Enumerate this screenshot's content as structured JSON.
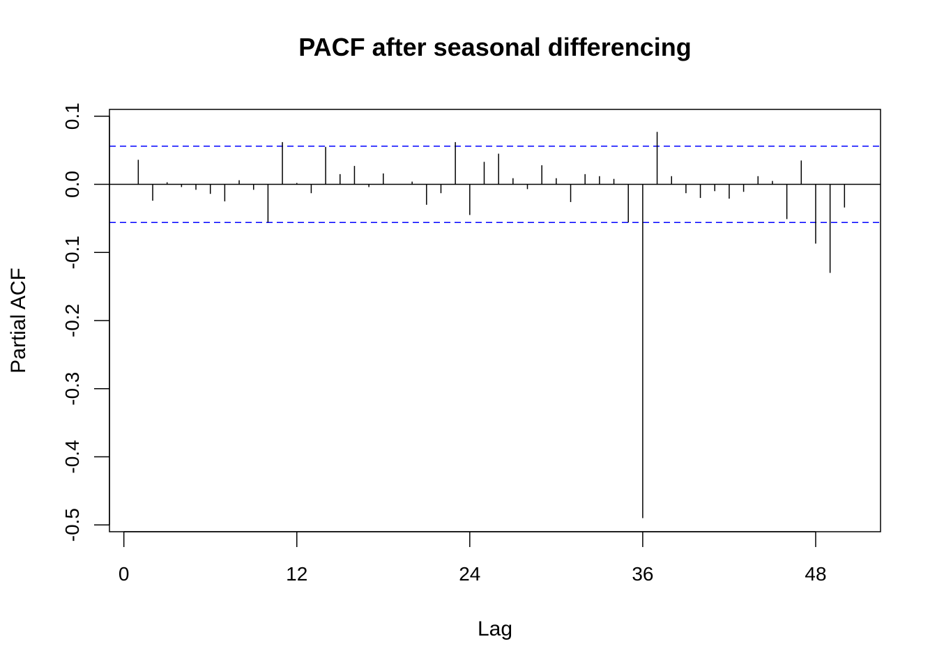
{
  "chart_data": {
    "type": "bar",
    "title": "PACF after seasonal differencing",
    "xlabel": "Lag",
    "ylabel": "Partial ACF",
    "xlim": [
      -1,
      52.5
    ],
    "ylim": [
      -0.51,
      0.11
    ],
    "x_ticks": [
      0,
      12,
      24,
      36,
      48
    ],
    "x_tick_labels": [
      "0",
      "12",
      "24",
      "36",
      "48"
    ],
    "y_ticks": [
      -0.5,
      -0.4,
      -0.3,
      -0.2,
      -0.1,
      0.0,
      0.1
    ],
    "y_tick_labels": [
      "-0.5",
      "-0.4",
      "-0.3",
      "-0.2",
      "-0.1",
      "0.0",
      "0.1"
    ],
    "confidence_band": [
      -0.056,
      0.056
    ],
    "confidence_color": "#0000ff",
    "bar_color": "#000000",
    "lags": [
      1,
      2,
      3,
      4,
      5,
      6,
      7,
      8,
      9,
      10,
      11,
      12,
      13,
      14,
      15,
      16,
      17,
      18,
      19,
      20,
      21,
      22,
      23,
      24,
      25,
      26,
      27,
      28,
      29,
      30,
      31,
      32,
      33,
      34,
      35,
      36,
      37,
      38,
      39,
      40,
      41,
      42,
      43,
      44,
      45,
      46,
      47,
      48,
      49,
      50
    ],
    "values": [
      0.036,
      -0.024,
      0.003,
      -0.004,
      -0.008,
      -0.014,
      -0.025,
      0.006,
      -0.008,
      -0.056,
      0.062,
      0.002,
      -0.013,
      0.055,
      0.015,
      0.027,
      -0.004,
      0.016,
      0.0,
      0.004,
      -0.03,
      -0.013,
      0.062,
      -0.045,
      0.033,
      0.045,
      0.009,
      -0.007,
      0.028,
      0.009,
      -0.026,
      0.015,
      0.012,
      0.008,
      -0.056,
      -0.49,
      0.077,
      0.012,
      -0.013,
      -0.02,
      -0.01,
      -0.021,
      -0.011,
      0.012,
      0.005,
      -0.051,
      0.035,
      -0.087,
      -0.13,
      -0.034
    ]
  }
}
